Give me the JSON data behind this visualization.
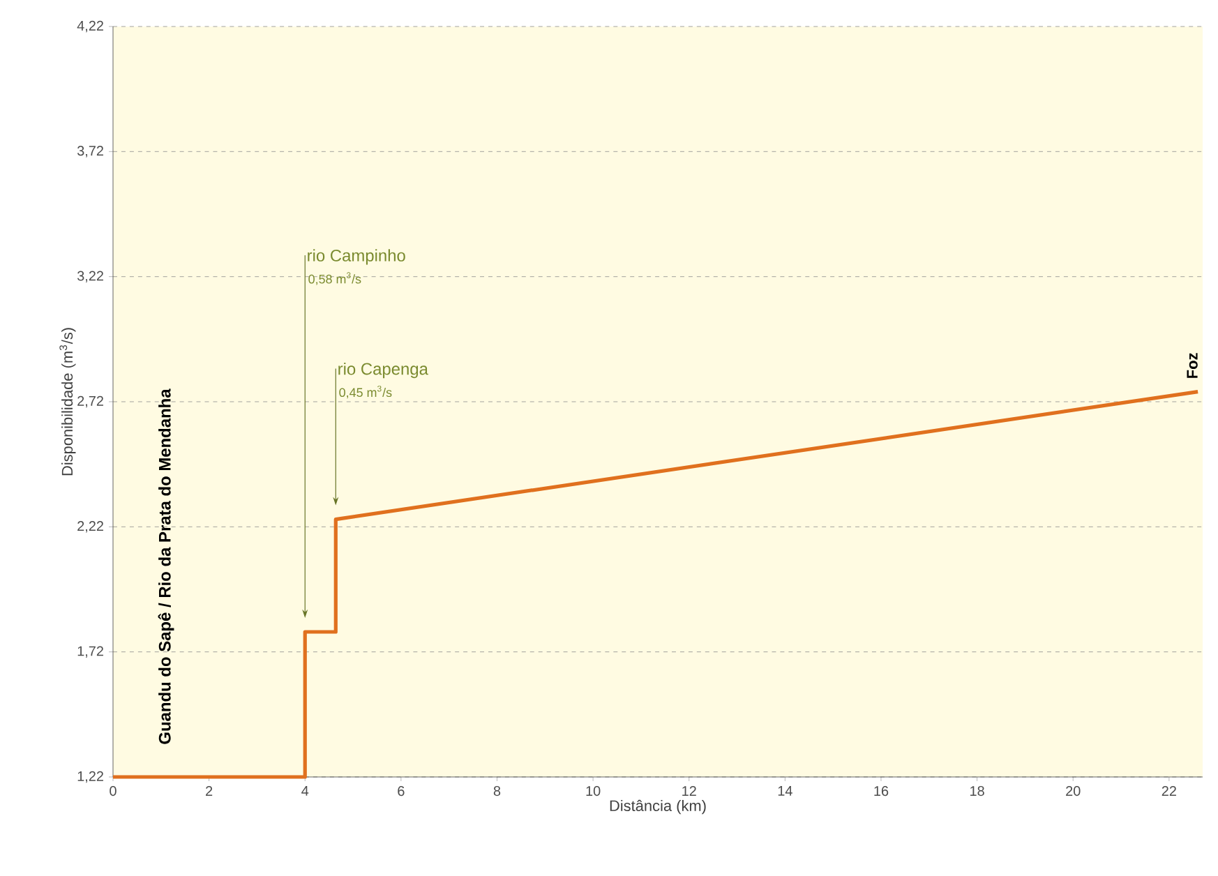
{
  "chart_data": {
    "type": "line",
    "xlabel": "Distância (km)",
    "ylabel": "Disponibilidade (m$^{3}$/s)",
    "series": [
      {
        "color": "#e0701e",
        "x": [
          0,
          4,
          4,
          4.64,
          4.64,
          22.6
        ],
        "values": [
          1.22,
          1.22,
          1.8,
          1.8,
          2.25,
          2.76
        ]
      }
    ],
    "xlim": [
      0,
      22.7
    ],
    "xticks": [
      0,
      2,
      4,
      6,
      8,
      10,
      12,
      14,
      16,
      18,
      20,
      22
    ],
    "ylim": [
      1.22,
      4.22
    ],
    "yticks": [
      {
        "value": 1.22,
        "label": "1,22"
      },
      {
        "value": 1.72,
        "label": "1,72"
      },
      {
        "value": 2.22,
        "label": "2,22"
      },
      {
        "value": 2.72,
        "label": "2,72"
      },
      {
        "value": 3.22,
        "label": "3,22"
      },
      {
        "value": 3.72,
        "label": "3,72"
      },
      {
        "value": 4.22,
        "label": "4,22"
      }
    ],
    "grid": "y",
    "line_style": "solid",
    "marker": "none",
    "annotations": [
      "rio Campinho",
      "0,58 m$^{3}$/s",
      "rio Capenga",
      "0,45 m$^{3}$/s",
      {
        "text": "Foz",
        "x": 22.6,
        "y": 2.76
      },
      "Guandu do Sapê / Rio da Prata do Mendanha"
    ]
  }
}
